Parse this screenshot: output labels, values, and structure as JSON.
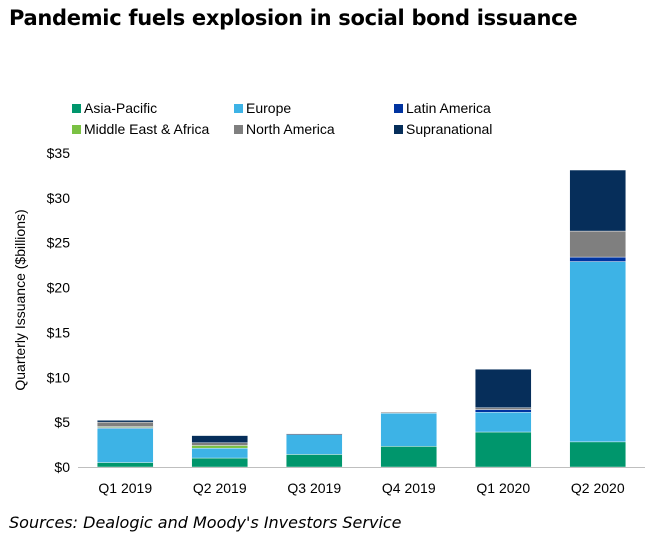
{
  "title": "Pandemic fuels explosion in social bond issuance",
  "footer": "Sources: Dealogic and Moody's Investors Service",
  "chart_data": {
    "type": "bar",
    "stacked": true,
    "ylabel": "Quarterly Issuance ($billions)",
    "xlabel": "",
    "ylim": [
      0,
      35
    ],
    "yticks": [
      0,
      5,
      10,
      15,
      20,
      25,
      30,
      35
    ],
    "ytick_labels": [
      "$0",
      "$5",
      "$10",
      "$15",
      "$20",
      "$25",
      "$30",
      "$35"
    ],
    "grid": false,
    "legend_position": "top",
    "categories": [
      "Q1 2019",
      "Q2 2019",
      "Q3 2019",
      "Q4 2019",
      "Q1 2020",
      "Q2 2020"
    ],
    "series": [
      {
        "name": "Asia-Pacific",
        "color": "#00966c",
        "values": [
          0.5,
          1.0,
          1.4,
          2.3,
          3.9,
          2.8
        ]
      },
      {
        "name": "Europe",
        "color": "#3db3e6",
        "values": [
          3.8,
          1.1,
          2.2,
          3.7,
          2.2,
          20.1
        ]
      },
      {
        "name": "Latin America",
        "color": "#0033a0",
        "values": [
          0.1,
          0.0,
          0.0,
          0.0,
          0.3,
          0.5
        ]
      },
      {
        "name": "Middle East & Africa",
        "color": "#7ac143",
        "values": [
          0.1,
          0.3,
          0.0,
          0.0,
          0.0,
          0.0
        ]
      },
      {
        "name": "North America",
        "color": "#7f7f7f",
        "values": [
          0.5,
          0.3,
          0.0,
          0.1,
          0.2,
          2.9
        ]
      },
      {
        "name": "Supranational",
        "color": "#062e5a",
        "values": [
          0.2,
          0.8,
          0.1,
          0.0,
          4.3,
          6.8
        ]
      }
    ]
  }
}
